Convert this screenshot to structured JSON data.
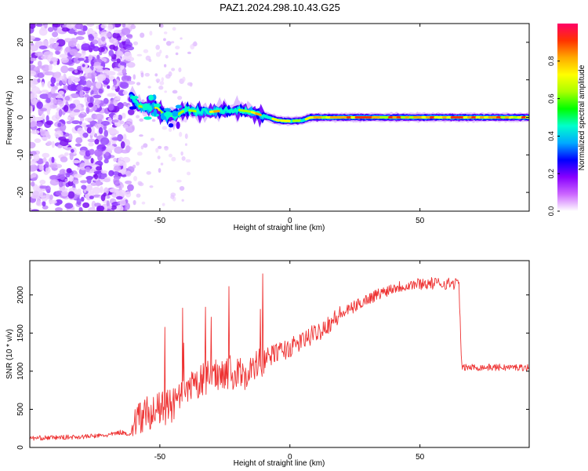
{
  "title": "PAZ1.2024.298.10.43.G25",
  "chart_data": [
    {
      "type": "heatmap",
      "xlabel": "Height of straight line (km)",
      "ylabel": "Frequency (Hz)",
      "xlim": [
        -100,
        92
      ],
      "ylim": [
        -25,
        25
      ],
      "x_ticks": [
        -50,
        0,
        50
      ],
      "y_ticks": [
        -20,
        -10,
        0,
        10,
        20
      ],
      "colorbar": {
        "label": "Normalized spectral amplitude",
        "range": [
          0,
          1
        ],
        "ticks": [
          "0.0",
          "0.2",
          "0.4",
          "0.6",
          "0.8"
        ],
        "colormap": [
          "#ffffff",
          "#cc66ff",
          "#8800ff",
          "#0000ff",
          "#00aaff",
          "#00ffcc",
          "#00ff00",
          "#aaff00",
          "#ffff00",
          "#ffaa00",
          "#ff3300",
          "#ff0066"
        ]
      },
      "ridge": [
        {
          "x": -61,
          "y": 5.5
        },
        {
          "x": -58,
          "y": 3
        },
        {
          "x": -55,
          "y": 2.5
        },
        {
          "x": -52,
          "y": 3
        },
        {
          "x": -48,
          "y": 0.5
        },
        {
          "x": -44,
          "y": 0.5
        },
        {
          "x": -40,
          "y": 2
        },
        {
          "x": -35,
          "y": 1.5
        },
        {
          "x": -30,
          "y": 1.5
        },
        {
          "x": -25,
          "y": 1.8
        },
        {
          "x": -20,
          "y": 2
        },
        {
          "x": -15,
          "y": 1.5
        },
        {
          "x": -12,
          "y": 0.8
        },
        {
          "x": -8,
          "y": 0
        },
        {
          "x": -5,
          "y": -0.8
        },
        {
          "x": 0,
          "y": -1
        },
        {
          "x": 5,
          "y": -0.8
        },
        {
          "x": 8,
          "y": 0
        },
        {
          "x": 20,
          "y": 0
        },
        {
          "x": 40,
          "y": 0
        },
        {
          "x": 60,
          "y": 0
        },
        {
          "x": 80,
          "y": 0
        },
        {
          "x": 92,
          "y": 0
        }
      ]
    },
    {
      "type": "line",
      "xlabel": "Height of straight line (km)",
      "ylabel": "SNR (10 * v/v)",
      "xlim": [
        -100,
        92
      ],
      "ylim": [
        0,
        2450
      ],
      "x_ticks": [
        -50,
        0,
        50
      ],
      "y_ticks": [
        0,
        500,
        1000,
        1500,
        2000
      ],
      "series": [
        {
          "color": "#ee3333",
          "x": [
            -100,
            -90,
            -80,
            -70,
            -65,
            -61,
            -60,
            -55,
            -50,
            -45,
            -40,
            -35,
            -30,
            -25,
            -20,
            -15,
            -10,
            -5,
            0,
            10,
            20,
            30,
            40,
            50,
            60,
            65,
            66,
            70,
            80,
            92
          ],
          "y": [
            120,
            130,
            140,
            160,
            200,
            170,
            350,
            450,
            500,
            550,
            700,
            850,
            950,
            1000,
            950,
            1000,
            1150,
            1250,
            1300,
            1500,
            1750,
            1950,
            2100,
            2150,
            2150,
            2150,
            1050,
            1050,
            1050,
            1050
          ]
        }
      ]
    }
  ]
}
